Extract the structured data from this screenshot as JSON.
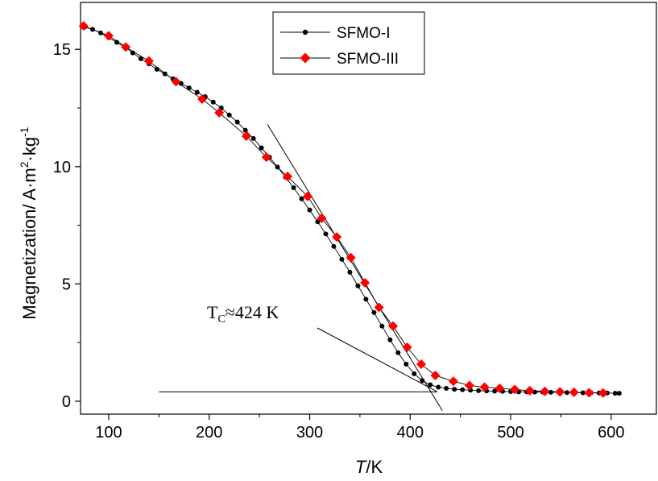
{
  "chart_data": {
    "type": "line",
    "title": "",
    "xlabel_italic": "T",
    "xlabel_unit": "/K",
    "ylabel_main": "Magnetization/ A·m",
    "ylabel_sup1": "2",
    "ylabel_mid": "·kg",
    "ylabel_sup2": "-1",
    "xlim": [
      72,
      645
    ],
    "ylim": [
      -0.55,
      17.0
    ],
    "xticks": [
      100,
      200,
      300,
      400,
      500,
      600
    ],
    "xtick_labels": [
      "100",
      "200",
      "300",
      "400",
      "500",
      "600"
    ],
    "yticks": [
      0,
      5,
      10,
      15
    ],
    "ytick_labels": [
      "0",
      "5",
      "10",
      "15"
    ],
    "legend_position": "top-center",
    "series": [
      {
        "name": "SFMO-I",
        "color": "#000000",
        "marker": "circle",
        "x": [
          76,
          84,
          92,
          100,
          108,
          116,
          124,
          132,
          140,
          148,
          156,
          164,
          172,
          180,
          188,
          196,
          204,
          212,
          220,
          228,
          236,
          244,
          252,
          260,
          268,
          276,
          284,
          292,
          300,
          308,
          316,
          324,
          332,
          340,
          348,
          356,
          364,
          372,
          380,
          388,
          396,
          404,
          412,
          420,
          428,
          436,
          444,
          452,
          460,
          468,
          476,
          484,
          492,
          500,
          508,
          516,
          524,
          532,
          540,
          548,
          556,
          564,
          572,
          580,
          588,
          596,
          604,
          608
        ],
        "y": [
          15.95,
          15.85,
          15.7,
          15.5,
          15.3,
          15.1,
          14.85,
          14.6,
          14.38,
          14.15,
          13.95,
          13.74,
          13.55,
          13.36,
          13.17,
          12.98,
          12.75,
          12.5,
          12.2,
          11.9,
          11.55,
          11.2,
          10.8,
          10.4,
          9.98,
          9.55,
          9.1,
          8.63,
          8.15,
          7.65,
          7.13,
          6.6,
          6.05,
          5.5,
          4.92,
          4.35,
          3.78,
          3.2,
          2.62,
          2.07,
          1.58,
          1.17,
          0.88,
          0.7,
          0.6,
          0.55,
          0.51,
          0.49,
          0.47,
          0.45,
          0.44,
          0.43,
          0.42,
          0.41,
          0.4,
          0.4,
          0.39,
          0.39,
          0.38,
          0.38,
          0.37,
          0.37,
          0.36,
          0.36,
          0.35,
          0.35,
          0.34,
          0.34
        ]
      },
      {
        "name": "SFMO-III",
        "color": "#ff0000",
        "marker": "diamond",
        "x": [
          75,
          100,
          117,
          140,
          167,
          193,
          210,
          237,
          257,
          278,
          298,
          312,
          327,
          341,
          355,
          369,
          383,
          397,
          411,
          425,
          443,
          459,
          474,
          489,
          504,
          519,
          534,
          549,
          563,
          578,
          592
        ],
        "y": [
          16.0,
          15.58,
          15.1,
          14.5,
          13.62,
          12.88,
          12.3,
          11.3,
          10.4,
          9.58,
          8.73,
          7.8,
          7.0,
          6.12,
          5.05,
          4.0,
          3.2,
          2.3,
          1.58,
          1.1,
          0.85,
          0.67,
          0.6,
          0.55,
          0.5,
          0.45,
          0.42,
          0.4,
          0.38,
          0.36,
          0.35
        ]
      }
    ],
    "tangent_lines": [
      {
        "x": [
          258,
          432
        ],
        "y": [
          11.8,
          -0.4
        ]
      },
      {
        "x": [
          150,
          427
        ],
        "y": [
          0.4,
          0.4
        ]
      }
    ],
    "annotation": {
      "text_main": "T",
      "text_sub": "C",
      "text_rest": "≈424 K",
      "anchor_x": 427,
      "anchor_y": 0.4
    }
  }
}
